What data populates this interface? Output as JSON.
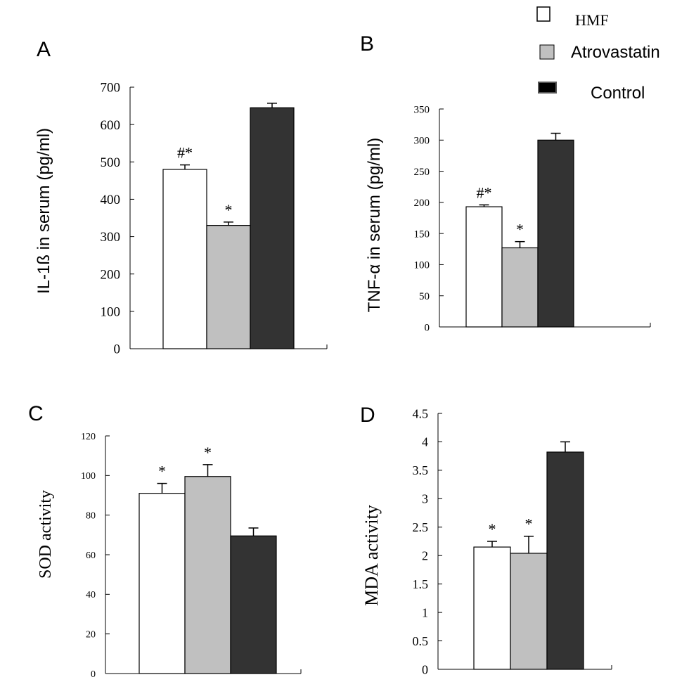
{
  "legend": {
    "items": [
      {
        "label": "HMF",
        "color": "#ffffff"
      },
      {
        "label": "Atrovastatin",
        "color": "#c0c0c0"
      },
      {
        "label": "Control",
        "color": "#000000"
      }
    ]
  },
  "chart_data": [
    {
      "panel": "A",
      "type": "bar",
      "ylabel": "IL-1ß in serum (pg/ml)",
      "ylim": [
        0,
        700
      ],
      "yticks": [
        "0",
        "100",
        "200",
        "300",
        "400",
        "500",
        "600",
        "700"
      ],
      "series": [
        {
          "name": "HMF",
          "value": 480,
          "error": 12,
          "annotation": "#*",
          "color": "#ffffff"
        },
        {
          "name": "Atrovastatin",
          "value": 330,
          "error": 9,
          "annotation": "*",
          "color": "#c0c0c0"
        },
        {
          "name": "Control",
          "value": 645,
          "error": 12,
          "annotation": "",
          "color": "#333333"
        }
      ]
    },
    {
      "panel": "B",
      "type": "bar",
      "ylabel": "TNF-α in serum (pg/ml)",
      "ylim": [
        0,
        350
      ],
      "yticks": [
        "0",
        "50",
        "100",
        "150",
        "200",
        "250",
        "300",
        "350"
      ],
      "series": [
        {
          "name": "HMF",
          "value": 193,
          "error": 3,
          "annotation": "#*",
          "color": "#ffffff"
        },
        {
          "name": "Atrovastatin",
          "value": 127,
          "error": 10,
          "annotation": "*",
          "color": "#c0c0c0"
        },
        {
          "name": "Control",
          "value": 300,
          "error": 11,
          "annotation": "",
          "color": "#333333"
        }
      ]
    },
    {
      "panel": "C",
      "type": "bar",
      "ylabel": "SOD activity",
      "ylim": [
        0,
        120
      ],
      "yticks": [
        "0",
        "20",
        "40",
        "60",
        "80",
        "100",
        "120"
      ],
      "series": [
        {
          "name": "HMF",
          "value": 91,
          "error": 5,
          "annotation": "*",
          "color": "#ffffff"
        },
        {
          "name": "Atrovastatin",
          "value": 99.5,
          "error": 6,
          "annotation": "*",
          "color": "#c0c0c0"
        },
        {
          "name": "Control",
          "value": 69.5,
          "error": 4,
          "annotation": "",
          "color": "#333333"
        }
      ]
    },
    {
      "panel": "D",
      "type": "bar",
      "ylabel": "MDA activity",
      "ylim": [
        0,
        4.5
      ],
      "yticks": [
        "0",
        "0.5",
        "1",
        "1.5",
        "2",
        "2.5",
        "3",
        "3.5",
        "4",
        "4.5"
      ],
      "series": [
        {
          "name": "HMF",
          "value": 2.15,
          "error": 0.1,
          "annotation": "*",
          "color": "#ffffff"
        },
        {
          "name": "Atrovastatin",
          "value": 2.04,
          "error": 0.3,
          "annotation": "*",
          "color": "#c0c0c0"
        },
        {
          "name": "Control",
          "value": 3.82,
          "error": 0.18,
          "annotation": "",
          "color": "#333333"
        }
      ]
    }
  ]
}
